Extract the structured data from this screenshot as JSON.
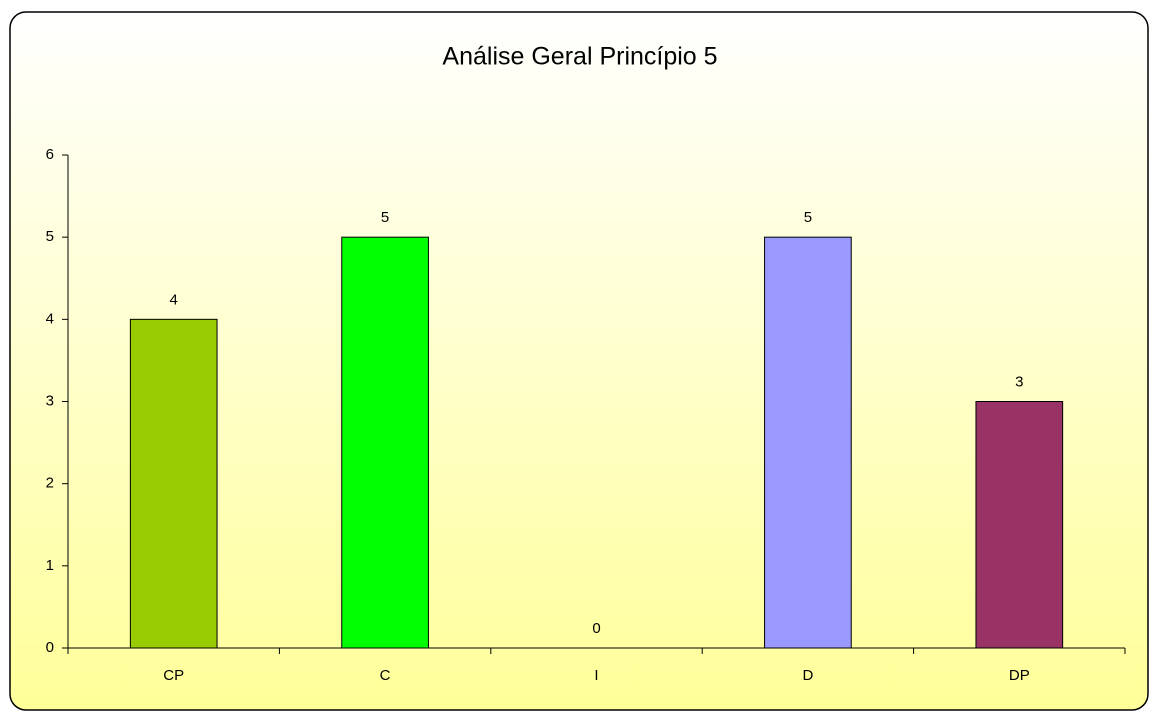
{
  "chart_data": {
    "type": "bar",
    "title": "Análise Geral Princípio 5",
    "categories": [
      "CP",
      "C",
      "I",
      "D",
      "DP"
    ],
    "values": [
      4,
      5,
      0,
      5,
      3
    ],
    "colors": [
      "#99cc00",
      "#00ff00",
      "#ff9900",
      "#9999ff",
      "#993366"
    ],
    "ylim": [
      0,
      6
    ],
    "yticks": [
      0,
      1,
      2,
      3,
      4,
      5,
      6
    ],
    "grid": false
  }
}
